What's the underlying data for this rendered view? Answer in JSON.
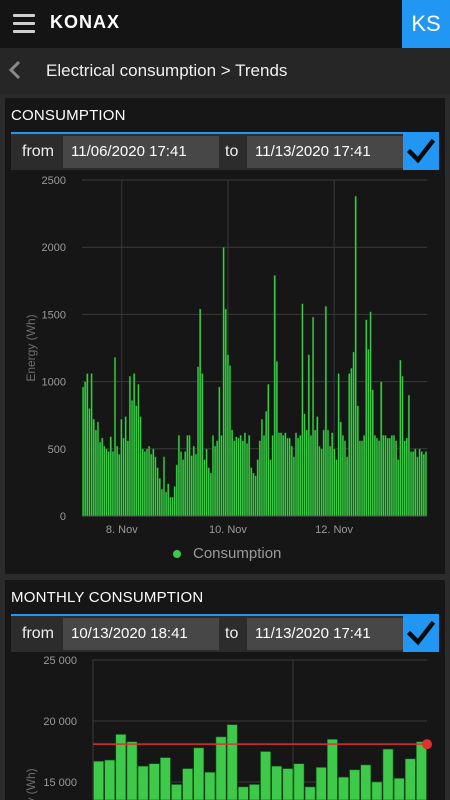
{
  "app": {
    "name": "KONAX",
    "user_initials": "KS",
    "accent": "#2196f3"
  },
  "breadcrumb": {
    "text": "Electrical consumption > Trends"
  },
  "consumption": {
    "title": "CONSUMPTION",
    "from_label": "from",
    "to_label": "to",
    "from_value": "11/06/2020 17:41",
    "to_value": "11/13/2020 17:41",
    "legend": "Consumption",
    "color": "#3ec94a",
    "chart_data": {
      "type": "bar",
      "xlabel": "",
      "ylabel": "Energy (Wh)",
      "ylim": [
        0,
        2500
      ],
      "yticks": [
        0,
        500,
        1000,
        1500,
        2000,
        2500
      ],
      "xticks": [
        {
          "label": "8. Nov",
          "pos": 1.5
        },
        {
          "label": "10. Nov",
          "pos": 3.5
        },
        {
          "label": "12. Nov",
          "pos": 5.5
        }
      ],
      "xrange": [
        0.75,
        7.25
      ],
      "grid": true,
      "legend": "bottom-center",
      "series": [
        {
          "name": "Consumption",
          "values": [
            960,
            1000,
            1060,
            800,
            1060,
            720,
            640,
            700,
            550,
            580,
            520,
            500,
            480,
            590,
            480,
            1180,
            520,
            460,
            720,
            580,
            740,
            560,
            1040,
            860,
            1060,
            820,
            980,
            740,
            500,
            480,
            500,
            520,
            460,
            500,
            440,
            360,
            280,
            200,
            440,
            180,
            240,
            140,
            140,
            220,
            380,
            600,
            480,
            420,
            480,
            600,
            600,
            450,
            520,
            460,
            1110,
            1540,
            1060,
            420,
            500,
            360,
            320,
            600,
            520,
            560,
            960,
            600,
            2000,
            1540,
            1200,
            1120,
            640,
            560,
            590,
            580,
            600,
            560,
            620,
            540,
            600,
            360,
            320,
            300,
            420,
            560,
            720,
            600,
            780,
            980,
            420,
            600,
            1790,
            1150,
            620,
            620,
            600,
            620,
            580,
            580,
            520,
            440,
            620,
            580,
            600,
            1580,
            760,
            640,
            1200,
            600,
            1480,
            640,
            740,
            520,
            500,
            640,
            1560,
            640,
            520,
            620,
            500,
            420,
            1060,
            700,
            600,
            560,
            440,
            1060,
            1100,
            1220,
            2380,
            820,
            560,
            560,
            600,
            1460,
            1240,
            1520,
            940,
            600,
            580,
            560,
            1000,
            600,
            600,
            580,
            580,
            600,
            600,
            560,
            420,
            1160,
            1040,
            560,
            580,
            900,
            480,
            480,
            500,
            440,
            500,
            480,
            460,
            480
          ]
        }
      ]
    }
  },
  "monthly": {
    "title": "MONTHLY CONSUMPTION",
    "from_label": "from",
    "to_label": "to",
    "from_value": "10/13/2020 18:41",
    "to_value": "11/13/2020 17:41",
    "color": "#3ec94a",
    "threshold_color": "#e03030",
    "chart_data": {
      "type": "bar",
      "xlabel": "",
      "ylabel": "Energy (Wh)",
      "ylim": [
        12000,
        25000
      ],
      "yticks": [
        "25 000",
        "20 000",
        "15 000"
      ],
      "ytick_values": [
        25000,
        20000,
        15000
      ],
      "threshold": 18100,
      "grid": true,
      "series": [
        {
          "name": "Consumption",
          "values": [
            16700,
            16800,
            18900,
            18300,
            16300,
            16500,
            17000,
            14800,
            16100,
            17800,
            15800,
            18700,
            19700,
            14600,
            14800,
            17500,
            16300,
            16100,
            16500,
            14600,
            16200,
            18500,
            15400,
            16000,
            16400,
            15000,
            17700,
            15300,
            16900,
            18300
          ]
        }
      ]
    }
  }
}
